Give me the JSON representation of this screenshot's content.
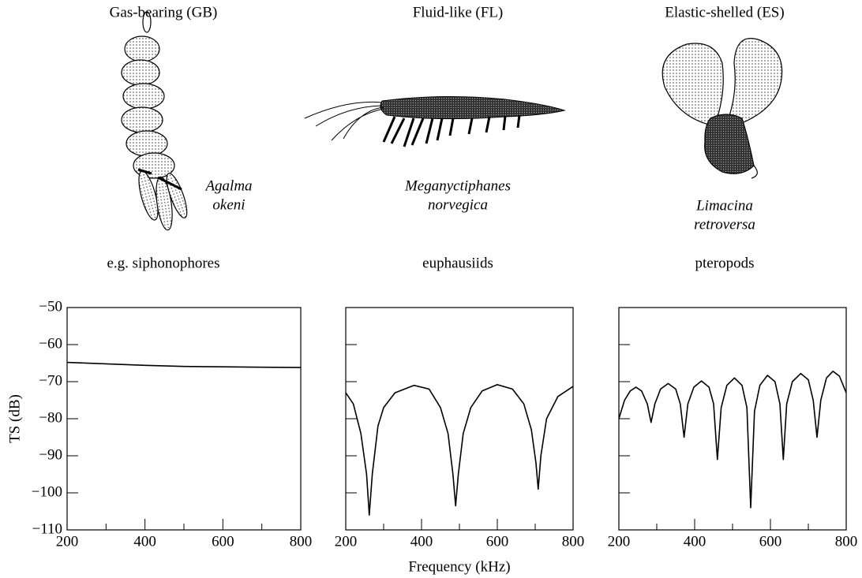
{
  "chart_data": [
    {
      "type": "line",
      "title": "Gas-bearing (GB)",
      "species": [
        "Agalma",
        "okeni"
      ],
      "group": "e.g. siphonophores",
      "ylabel": "TS (dB)",
      "x": [
        200,
        300,
        400,
        500,
        600,
        700,
        800
      ],
      "series": [
        {
          "color": "#000000",
          "values": [
            -64.8,
            -65.2,
            -65.6,
            -65.9,
            -66.0,
            -66.1,
            -66.2
          ]
        }
      ],
      "xlim": [
        200,
        800
      ],
      "ylim": [
        -110,
        -50
      ],
      "xticks": [
        200,
        400,
        600,
        800
      ],
      "xticks_minor": [
        300,
        500,
        700
      ],
      "yticks": [
        {
          "value": -110,
          "label": "−110"
        },
        {
          "value": -100,
          "label": "−100"
        },
        {
          "value": -90,
          "label": "−90"
        },
        {
          "value": -80,
          "label": "−80"
        },
        {
          "value": -70,
          "label": "−70"
        },
        {
          "value": -60,
          "label": "−60"
        },
        {
          "value": -50,
          "label": "−50"
        }
      ],
      "ytick_labels": true
    },
    {
      "type": "line",
      "title": "Fluid-like (FL)",
      "species": [
        "Meganyctiphanes",
        "norvegica"
      ],
      "group": "euphausiids",
      "xlabel": "Frequency (kHz)",
      "x": [
        200,
        220,
        240,
        255,
        262,
        270,
        285,
        300,
        330,
        380,
        420,
        450,
        470,
        483,
        490,
        497,
        510,
        530,
        560,
        600,
        640,
        670,
        690,
        702,
        708,
        715,
        730,
        760,
        800
      ],
      "series": [
        {
          "color": "#000000",
          "values": [
            -73,
            -76,
            -84,
            -95,
            -106,
            -95,
            -82,
            -77,
            -73,
            -71,
            -72,
            -77,
            -84,
            -95,
            -103.5,
            -95,
            -84,
            -77,
            -72.5,
            -70.8,
            -72,
            -76,
            -83,
            -92,
            -99,
            -90,
            -80,
            -74,
            -71.3
          ]
        }
      ],
      "xlim": [
        200,
        800
      ],
      "ylim": [
        -110,
        -50
      ],
      "xticks": [
        200,
        400,
        600,
        800
      ],
      "xticks_minor": [
        300,
        500,
        700
      ],
      "yticks": [
        -110,
        -100,
        -90,
        -80,
        -70,
        -60,
        -50
      ],
      "ytick_labels": false
    },
    {
      "type": "line",
      "title": "Elastic-shelled (ES)",
      "species": [
        "Limacina",
        "retroversa"
      ],
      "group": "pteropods",
      "x": [
        200,
        215,
        230,
        245,
        260,
        275,
        285,
        295,
        310,
        330,
        350,
        362,
        372,
        382,
        398,
        418,
        438,
        450,
        460,
        470,
        485,
        505,
        525,
        538,
        548,
        558,
        572,
        592,
        612,
        625,
        634,
        643,
        658,
        680,
        700,
        713,
        723,
        733,
        748,
        765,
        782,
        800
      ],
      "series": [
        {
          "color": "#000000",
          "values": [
            -80,
            -75,
            -72.5,
            -71.5,
            -72.5,
            -76,
            -81,
            -76,
            -72,
            -70.5,
            -72,
            -76,
            -85,
            -76,
            -71.5,
            -69.8,
            -71.5,
            -76,
            -91,
            -77,
            -71,
            -69,
            -71,
            -77,
            -104,
            -78,
            -71,
            -68.3,
            -70,
            -76,
            -91,
            -76,
            -70,
            -67.8,
            -69.5,
            -75,
            -85,
            -75,
            -69,
            -67.2,
            -68.5,
            -73
          ]
        }
      ],
      "xlim": [
        200,
        800
      ],
      "ylim": [
        -110,
        -50
      ],
      "xticks": [
        200,
        400,
        600,
        800
      ],
      "xticks_minor": [
        300,
        500,
        700
      ],
      "yticks": [
        -110,
        -100,
        -90,
        -80,
        -70,
        -60,
        -50
      ],
      "ytick_labels": false
    }
  ]
}
